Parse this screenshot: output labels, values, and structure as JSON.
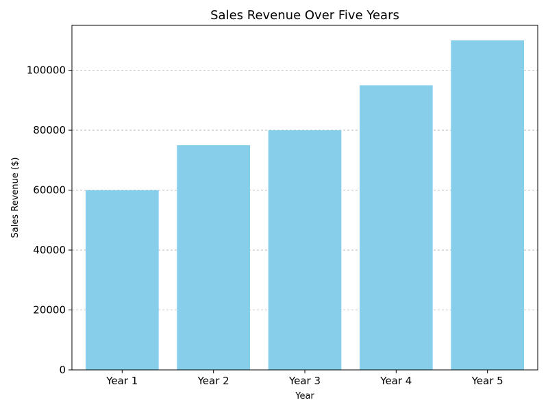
{
  "chart_data": {
    "type": "bar",
    "title": "Sales Revenue Over Five Years",
    "xlabel": "Year",
    "ylabel": "Sales Revenue ($)",
    "categories": [
      "Year 1",
      "Year 2",
      "Year 3",
      "Year 4",
      "Year 5"
    ],
    "values": [
      60000,
      75000,
      80000,
      95000,
      110000
    ],
    "ylim": [
      0,
      115000
    ],
    "yticks": [
      0,
      20000,
      40000,
      60000,
      80000,
      100000
    ],
    "ytick_labels": [
      "0",
      "20000",
      "40000",
      "60000",
      "80000",
      "100000"
    ],
    "grid": "y-dashed",
    "bar_color": "#87ceeb"
  }
}
